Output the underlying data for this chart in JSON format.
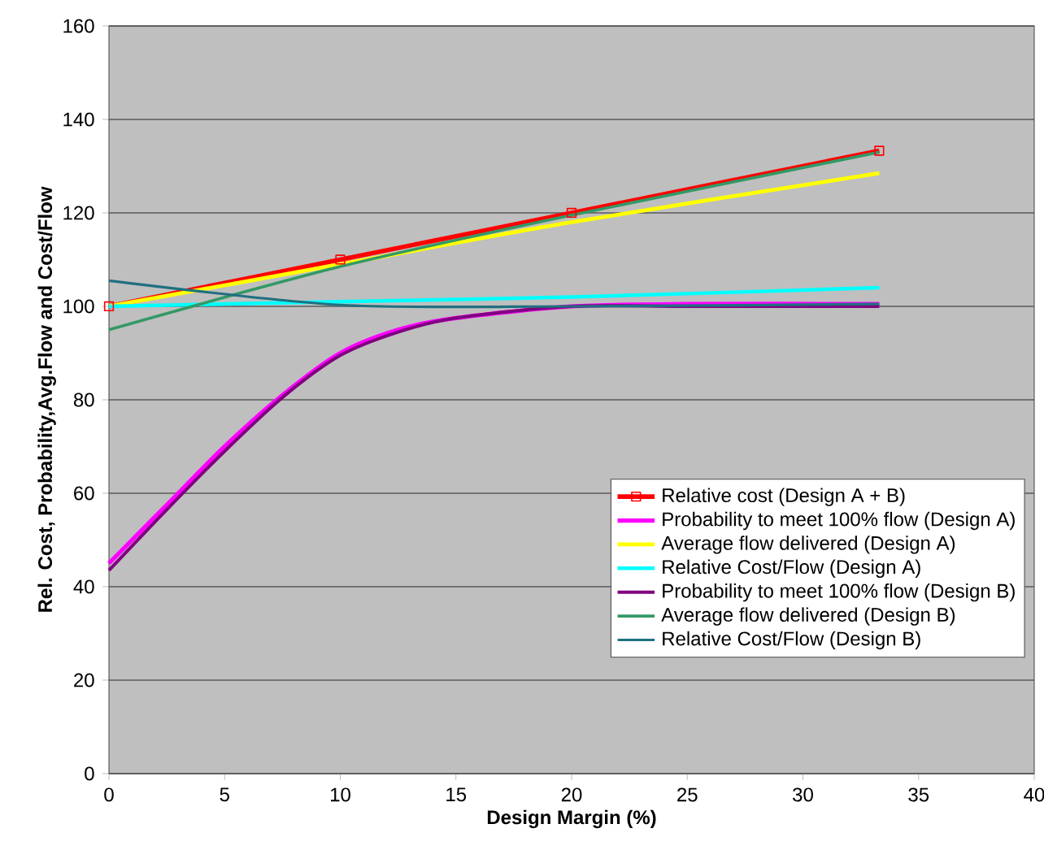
{
  "chart_data": {
    "type": "line",
    "xlabel": "Design Margin (%)",
    "ylabel": "Rel. Cost, Probability,Avg.Flow and Cost/Flow",
    "xlim": [
      0,
      40
    ],
    "xticks": [
      0,
      5,
      10,
      15,
      20,
      25,
      30,
      35,
      40
    ],
    "ylim": [
      0,
      160
    ],
    "yticks": [
      0,
      20,
      40,
      60,
      80,
      100,
      120,
      140,
      160
    ],
    "grid": "y",
    "legend": "right",
    "series": [
      {
        "name": "Relative cost (Design A + B)",
        "color": "#ff0000",
        "marker": "square",
        "x": [
          0,
          10,
          20,
          33.3
        ],
        "values": [
          100,
          110,
          120,
          133.3
        ]
      },
      {
        "name": "Probability to meet 100% flow (Design A)",
        "color": "#ff00ff",
        "marker": "none",
        "x": [
          0,
          2.5,
          5,
          7.5,
          10,
          12.5,
          15,
          20,
          25,
          33.3
        ],
        "values": [
          45,
          57.5,
          70,
          81,
          90,
          95,
          97.5,
          100,
          100.5,
          100.5
        ]
      },
      {
        "name": "Average flow delivered (Design A)",
        "color": "#ffff00",
        "marker": "none",
        "x": [
          0,
          10,
          20,
          33.3
        ],
        "values": [
          100,
          109,
          118,
          128.5
        ]
      },
      {
        "name": "Relative Cost/Flow (Design A)",
        "color": "#00ffff",
        "marker": "none",
        "x": [
          0,
          10,
          20,
          33.3
        ],
        "values": [
          100,
          101,
          102,
          104
        ]
      },
      {
        "name": "Probability to meet 100% flow (Design B)",
        "color": "#800080",
        "marker": "none",
        "x": [
          0,
          2.5,
          5,
          7.5,
          10,
          12.5,
          15,
          20,
          25,
          33.3
        ],
        "values": [
          43.5,
          56.5,
          69,
          80.5,
          89.5,
          94.5,
          97.5,
          100,
          100,
          100
        ]
      },
      {
        "name": "Average flow delivered (Design B)",
        "color": "#339966",
        "marker": "none",
        "x": [
          0,
          10,
          20,
          33.3
        ],
        "values": [
          95,
          108.5,
          119.5,
          133
        ]
      },
      {
        "name": "Relative Cost/Flow (Design B)",
        "color": "#1f7080",
        "marker": "none",
        "x": [
          0,
          10,
          20,
          33.3
        ],
        "values": [
          105.5,
          100.3,
          100,
          100.5
        ]
      }
    ]
  }
}
